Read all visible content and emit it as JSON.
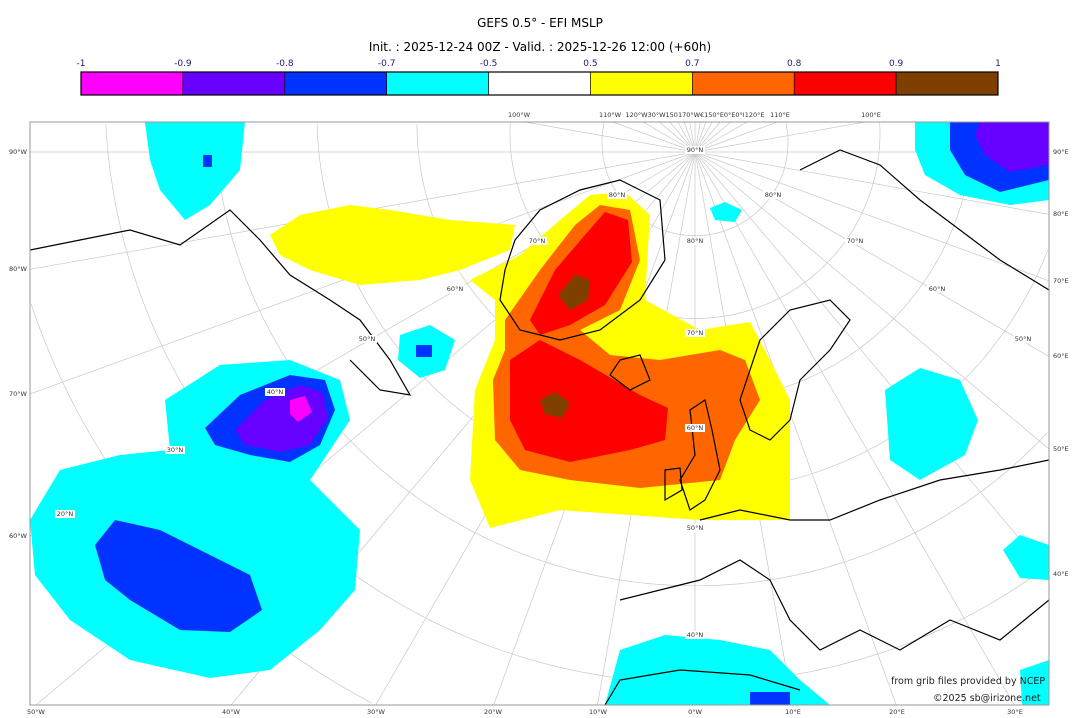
{
  "title": "GEFS 0.5° - EFI MSLP",
  "subtitle": "Init. : 2025-12-24 00Z - Valid. : 2025-12-26 12:00 (+60h)",
  "colorbar": {
    "ticks": [
      "-1",
      "-0.9",
      "-0.8",
      "-0.7",
      "-0.5",
      "0.5",
      "0.7",
      "0.8",
      "0.9",
      "1"
    ],
    "colors": [
      "#ff00ff",
      "#6600ff",
      "#0033ff",
      "#00ffff",
      "#ffffff",
      "#ffff00",
      "#ff6600",
      "#ff0000",
      "#7f3f00"
    ]
  },
  "map": {
    "left_labels": [
      "90°W",
      "80°W",
      "70°W",
      "60°W"
    ],
    "right_labels": [
      "90°E",
      "80°E",
      "70°E",
      "60°E",
      "50°E",
      "40°E"
    ],
    "bottom_labels": [
      "50°W",
      "40°W",
      "30°W",
      "20°W",
      "10°W",
      "0°W",
      "10°E",
      "20°E",
      "30°E"
    ],
    "top_labels": [
      "100°W",
      "110°W",
      "120°W30°W150170°W€150°E0°E0°I120°E",
      "110°E",
      "100°E"
    ],
    "lat_labels": [
      "90°N",
      "80°N",
      "70°N",
      "60°N",
      "50°N",
      "40°N",
      "30°N",
      "20°N",
      "80°N",
      "70°N",
      "60°N",
      "50°N",
      "40°N",
      "80°N",
      "70°N",
      "60°N",
      "50°N"
    ]
  },
  "credits": {
    "source": "from grib files provided by NCEP",
    "copyright": "©2025 sb@irizone.net"
  }
}
